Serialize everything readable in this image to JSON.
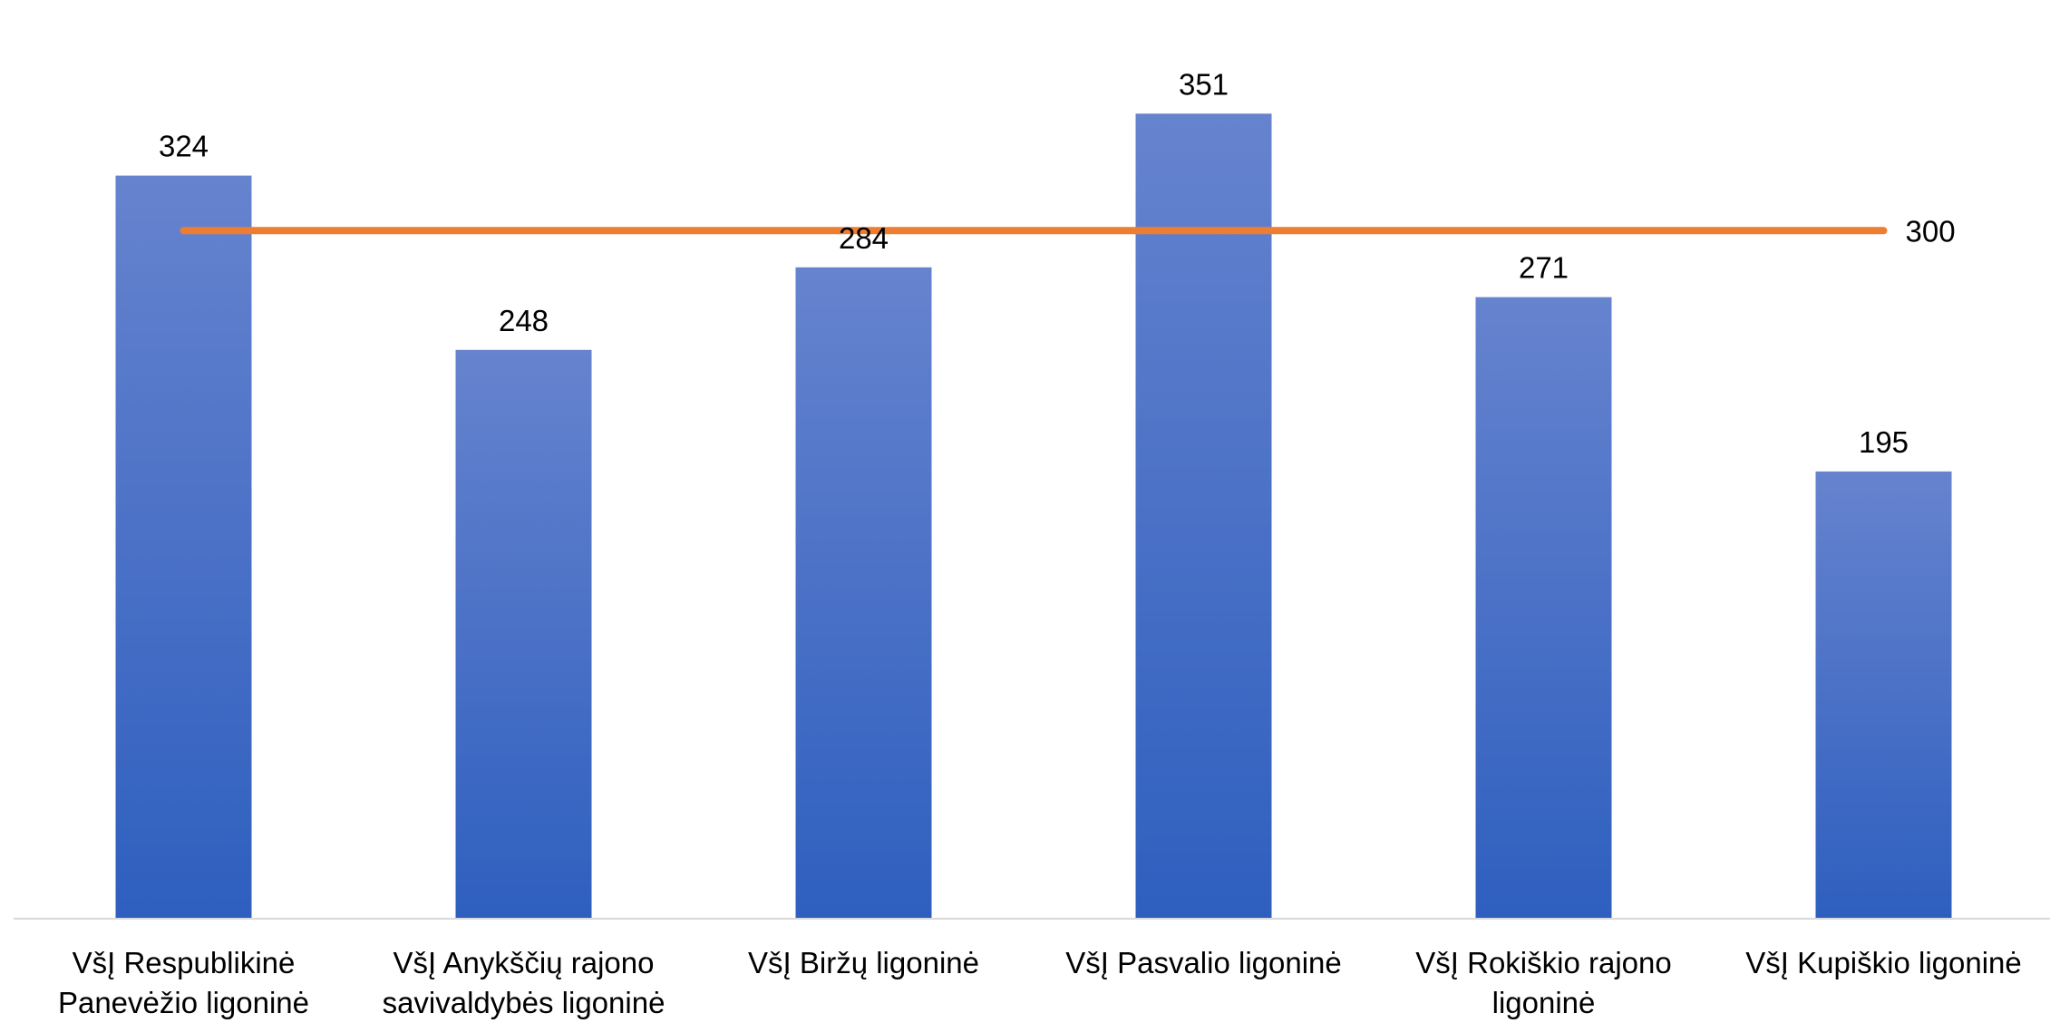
{
  "chart_data": {
    "type": "bar",
    "categories": [
      [
        "VšĮ Respublikinė",
        "Panevėžio ligoninė"
      ],
      [
        "VšĮ Anykščių rajono",
        "savivaldybės ligoninė"
      ],
      [
        "VšĮ Biržų ligoninė"
      ],
      [
        "VšĮ Pasvalio ligoninė"
      ],
      [
        "VšĮ Rokiškio rajono",
        "ligoninė"
      ],
      [
        "VšĮ Kupiškio ligoninė"
      ]
    ],
    "values": [
      324,
      248,
      284,
      351,
      271,
      195
    ],
    "data_labels": [
      "324",
      "248",
      "284",
      "351",
      "271",
      "195"
    ],
    "reference_line": {
      "value": 300,
      "label": "300"
    },
    "ylim": [
      0,
      370
    ],
    "grid": false,
    "legend": "none",
    "colors": {
      "bar_top": "#6683CE",
      "bar_bottom": "#2E5FBF",
      "reference_line": "#ED7D31",
      "axis": "#D9D9D9"
    }
  }
}
